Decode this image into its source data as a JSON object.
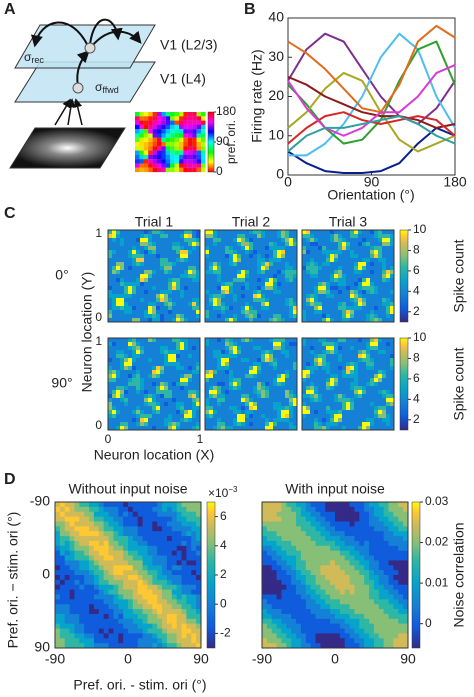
{
  "panel_a": {
    "letter": "A",
    "layer_top": "V1 (L2/3)",
    "layer_bottom": "V1 (L4)",
    "sigma_rec": {
      "symbol": "σ",
      "sub": "rec"
    },
    "sigma_ffwd": {
      "symbol": "σ",
      "sub": "ffwd"
    },
    "colorbar_label": "pref. ori.",
    "colorbar_lim": [
      0,
      180
    ],
    "colorbar_ticks": [
      0,
      90,
      180
    ]
  },
  "chart_data": {
    "type": "line",
    "panel": "B",
    "y_label": "Firing rate (Hz)",
    "x_label": "Orientation (°)",
    "x": [
      0,
      20,
      40,
      60,
      80,
      100,
      120,
      140,
      160,
      180
    ],
    "series": [
      {
        "color": "#0a1f8f",
        "values": [
          6,
          3,
          1,
          0.5,
          0.5,
          1,
          3,
          8,
          12,
          10
        ]
      },
      {
        "color": "#7e2f8e",
        "values": [
          24,
          32,
          36,
          34,
          27,
          20,
          15,
          13,
          17,
          24
        ]
      },
      {
        "color": "#4dbeee",
        "values": [
          5,
          5,
          8,
          13,
          20,
          30,
          36,
          32,
          20,
          12
        ]
      },
      {
        "color": "#2ca02c",
        "values": [
          23,
          18,
          12,
          8,
          9,
          14,
          24,
          32,
          34,
          23
        ]
      },
      {
        "color": "#a8a820",
        "values": [
          12,
          16,
          22,
          26,
          24,
          16,
          9,
          6,
          8,
          10
        ]
      },
      {
        "color": "#8b1a1a",
        "values": [
          25,
          23,
          20,
          18,
          16,
          15,
          15,
          14,
          12,
          13
        ]
      },
      {
        "color": "#d62728",
        "values": [
          8,
          12,
          15,
          16,
          14,
          13,
          14,
          15,
          14,
          10
        ]
      },
      {
        "color": "#e36c1c",
        "values": [
          34,
          31,
          27,
          22,
          17,
          16,
          23,
          34,
          38,
          35
        ]
      },
      {
        "color": "#d63cd6",
        "values": [
          24,
          17,
          12,
          10,
          12,
          16,
          16,
          20,
          26,
          28
        ]
      },
      {
        "color": "#30a0a0",
        "values": [
          6,
          10,
          12,
          12,
          13,
          14,
          15,
          13,
          10,
          8
        ]
      }
    ],
    "xlim": [
      0,
      180
    ],
    "ylim": [
      0,
      40
    ],
    "xticks": [
      0,
      90,
      180
    ],
    "yticks": [
      0,
      10,
      20,
      30,
      40
    ]
  },
  "panel_c": {
    "letter": "C",
    "columns": [
      "Trial 1",
      "Trial 2",
      "Trial 3"
    ],
    "rows": [
      "0°",
      "90°"
    ],
    "y_label": "Neuron location (Y)",
    "x_label": "Neuron location (X)",
    "xticks": [
      0,
      1
    ],
    "yticks": [
      0,
      1
    ],
    "colorbar_label": "Spike count",
    "colorbar_lim": [
      1,
      10
    ],
    "colorbar_ticks": [
      2,
      4,
      6,
      8,
      10
    ]
  },
  "panel_d": {
    "letter": "D",
    "titles": [
      "Without input noise",
      "With input noise"
    ],
    "y_label": "Pref. ori. − stim. ori (°)",
    "x_label": "Pref. ori. - stim. ori (°)",
    "xticks": [
      -90,
      0,
      90
    ],
    "yticks": [
      -90,
      0,
      90
    ],
    "left_colorbar_scale": {
      "base": "×10",
      "exp": "−3"
    },
    "left_colorbar_lim": [
      -3,
      7
    ],
    "left_colorbar_ticks": [
      -2,
      0,
      2,
      4,
      6
    ],
    "right_colorbar_label": "Noise correlation",
    "right_colorbar_lim": [
      -0.006,
      0.03
    ],
    "right_colorbar_ticks": [
      0,
      0.01,
      0.02,
      0.03
    ]
  }
}
